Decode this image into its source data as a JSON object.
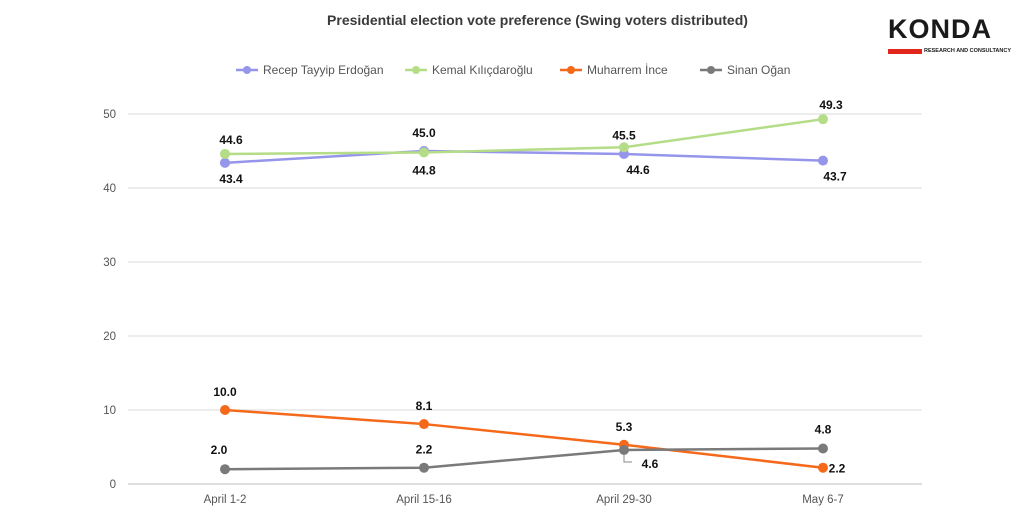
{
  "logo": {
    "word": "KONDA",
    "subtitle": "RESEARCH AND CONSULTANCY"
  },
  "chart_data": {
    "type": "line",
    "title": "Presidential election vote preference (Swing voters distributed)",
    "categories": [
      "April 1-2",
      "April 15-16",
      "April 29-30",
      "May 6-7"
    ],
    "ylim": [
      0,
      50
    ],
    "yticks": [
      0,
      10,
      20,
      30,
      40,
      50
    ],
    "grid": true,
    "legend": "top",
    "series": [
      {
        "name": "Recep Tayyip Erdoğan",
        "color": "#9595ec",
        "values": [
          43.4,
          45.0,
          44.6,
          43.7
        ],
        "labels": [
          "43.4",
          "45.0",
          "44.6",
          "43.7"
        ]
      },
      {
        "name": "Kemal Kılıçdaroğlu",
        "color": "#b5dc86",
        "values": [
          44.6,
          44.8,
          45.5,
          49.3
        ],
        "labels": [
          "44.6",
          "44.8",
          "45.5",
          "49.3"
        ]
      },
      {
        "name": "Muharrem İnce",
        "color": "#f5691b",
        "values": [
          10.0,
          8.1,
          5.3,
          2.2
        ],
        "labels": [
          "10.0",
          "8.1",
          "5.3",
          "2.2"
        ]
      },
      {
        "name": "Sinan Oğan",
        "color": "#7a7a7a",
        "values": [
          2.0,
          2.2,
          4.6,
          4.8
        ],
        "labels": [
          "2.0",
          "2.2",
          "4.6",
          "4.8"
        ]
      }
    ]
  }
}
